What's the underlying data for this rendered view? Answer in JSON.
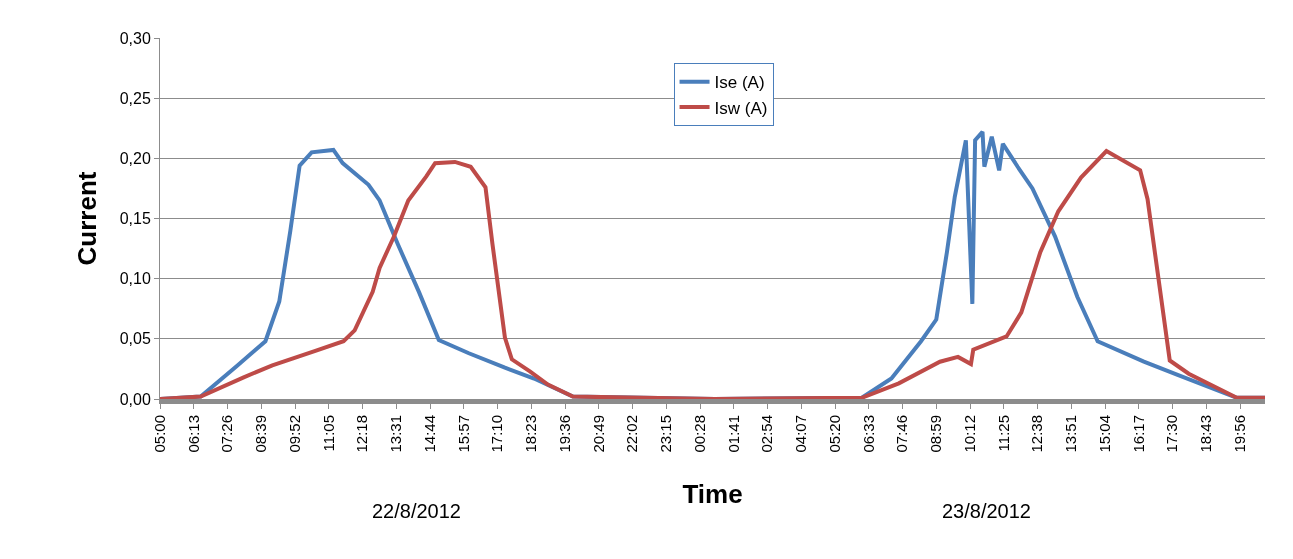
{
  "chart_data": {
    "type": "line",
    "xlabel": "Time",
    "ylabel": "Current",
    "annotations": [
      "22/8/2012",
      "23/8/2012"
    ],
    "xlim": [
      "2012-08-22T05:00",
      "2012-08-23T20:50"
    ],
    "xticks": [
      {
        "value": "2012-08-22T05:00",
        "label": "05:00"
      },
      {
        "value": "2012-08-22T06:13",
        "label": "06:13"
      },
      {
        "value": "2012-08-22T07:26",
        "label": "07:26"
      },
      {
        "value": "2012-08-22T08:39",
        "label": "08:39"
      },
      {
        "value": "2012-08-22T09:52",
        "label": "09:52"
      },
      {
        "value": "2012-08-22T11:05",
        "label": "11:05"
      },
      {
        "value": "2012-08-22T12:18",
        "label": "12:18"
      },
      {
        "value": "2012-08-22T13:31",
        "label": "13:31"
      },
      {
        "value": "2012-08-22T14:44",
        "label": "14:44"
      },
      {
        "value": "2012-08-22T15:57",
        "label": "15:57"
      },
      {
        "value": "2012-08-22T17:10",
        "label": "17:10"
      },
      {
        "value": "2012-08-22T18:23",
        "label": "18:23"
      },
      {
        "value": "2012-08-22T19:36",
        "label": "19:36"
      },
      {
        "value": "2012-08-22T20:49",
        "label": "20:49"
      },
      {
        "value": "2012-08-22T22:02",
        "label": "22:02"
      },
      {
        "value": "2012-08-22T23:15",
        "label": "23:15"
      },
      {
        "value": "2012-08-23T00:28",
        "label": "00:28"
      },
      {
        "value": "2012-08-23T01:41",
        "label": "01:41"
      },
      {
        "value": "2012-08-23T02:54",
        "label": "02:54"
      },
      {
        "value": "2012-08-23T04:07",
        "label": "04:07"
      },
      {
        "value": "2012-08-23T05:20",
        "label": "05:20"
      },
      {
        "value": "2012-08-23T06:33",
        "label": "06:33"
      },
      {
        "value": "2012-08-23T07:46",
        "label": "07:46"
      },
      {
        "value": "2012-08-23T08:59",
        "label": "08:59"
      },
      {
        "value": "2012-08-23T10:12",
        "label": "10:12"
      },
      {
        "value": "2012-08-23T11:25",
        "label": "11:25"
      },
      {
        "value": "2012-08-23T12:38",
        "label": "12:38"
      },
      {
        "value": "2012-08-23T13:51",
        "label": "13:51"
      },
      {
        "value": "2012-08-23T15:04",
        "label": "15:04"
      },
      {
        "value": "2012-08-23T16:17",
        "label": "16:17"
      },
      {
        "value": "2012-08-23T17:30",
        "label": "17:30"
      },
      {
        "value": "2012-08-23T18:43",
        "label": "18:43"
      },
      {
        "value": "2012-08-23T19:56",
        "label": "19:56"
      }
    ],
    "ylim": [
      0,
      0.3
    ],
    "yticks": [
      {
        "value": 0,
        "label": "0,00"
      },
      {
        "value": 0.05,
        "label": "0,05"
      },
      {
        "value": 0.1,
        "label": "0,10"
      },
      {
        "value": 0.15,
        "label": "0,15"
      },
      {
        "value": 0.2,
        "label": "0,20"
      },
      {
        "value": 0.25,
        "label": "0,25"
      },
      {
        "value": 0.3,
        "label": "0,30"
      }
    ],
    "grid": "y",
    "legend": "top",
    "marker": "none",
    "line_style": "solid",
    "series": [
      {
        "name": "Ise (A)",
        "color": "#4a7ebb",
        "x": [
          "2012-08-22T05:00",
          "2012-08-22T06:28",
          "2012-08-22T07:45",
          "2012-08-22T08:48",
          "2012-08-22T09:18",
          "2012-08-22T09:42",
          "2012-08-22T10:02",
          "2012-08-22T10:28",
          "2012-08-22T11:15",
          "2012-08-22T11:35",
          "2012-08-22T12:31",
          "2012-08-22T12:55",
          "2012-08-22T13:34",
          "2012-08-22T14:20",
          "2012-08-22T15:03",
          "2012-08-22T16:08",
          "2012-08-22T17:26",
          "2012-08-22T18:29",
          "2012-08-22T19:53",
          "2012-08-23T01:00",
          "2012-08-23T06:18",
          "2012-08-23T07:22",
          "2012-08-23T08:26",
          "2012-08-23T08:59",
          "2012-08-23T09:22",
          "2012-08-23T09:39",
          "2012-08-23T10:03",
          "2012-08-23T10:10",
          "2012-08-23T10:17",
          "2012-08-23T10:23",
          "2012-08-23T10:39",
          "2012-08-23T10:43",
          "2012-08-23T10:59",
          "2012-08-23T11:15",
          "2012-08-23T11:23",
          "2012-08-23T11:55",
          "2012-08-23T12:27",
          "2012-08-23T13:16",
          "2012-08-23T14:04",
          "2012-08-23T14:48",
          "2012-08-23T16:28",
          "2012-08-23T17:41",
          "2012-08-23T19:49",
          "2012-08-23T20:50"
        ],
        "values": [
          0,
          0.002,
          0.027,
          0.048,
          0.081,
          0.14,
          0.194,
          0.205,
          0.207,
          0.196,
          0.178,
          0.165,
          0.129,
          0.089,
          0.049,
          0.038,
          0.026,
          0.017,
          0.002,
          0,
          0.001,
          0.017,
          0.048,
          0.066,
          0.122,
          0.168,
          0.215,
          0.147,
          0.079,
          0.215,
          0.222,
          0.193,
          0.218,
          0.19,
          0.212,
          0.193,
          0.175,
          0.135,
          0.085,
          0.048,
          0.031,
          0.02,
          0.001,
          0.001
        ]
      },
      {
        "name": "Isw (A)",
        "color": "#be4b48",
        "x": [
          "2012-08-22T05:00",
          "2012-08-22T06:28",
          "2012-08-22T08:01",
          "2012-08-22T09:03",
          "2012-08-22T10:36",
          "2012-08-22T11:37",
          "2012-08-22T12:01",
          "2012-08-22T12:40",
          "2012-08-22T12:55",
          "2012-08-22T13:26",
          "2012-08-22T13:57",
          "2012-08-22T14:36",
          "2012-08-22T14:55",
          "2012-08-22T15:38",
          "2012-08-22T16:12",
          "2012-08-22T16:44",
          "2012-08-22T16:59",
          "2012-08-22T17:26",
          "2012-08-22T17:41",
          "2012-08-22T18:20",
          "2012-08-22T18:59",
          "2012-08-22T19:53",
          "2012-08-23T01:00",
          "2012-08-23T06:18",
          "2012-08-23T07:38",
          "2012-08-23T09:07",
          "2012-08-23T09:46",
          "2012-08-23T10:14",
          "2012-08-23T10:19",
          "2012-08-23T11:31",
          "2012-08-23T12:03",
          "2012-08-23T12:44",
          "2012-08-23T13:23",
          "2012-08-23T14:12",
          "2012-08-23T15:07",
          "2012-08-23T16:20",
          "2012-08-23T16:36",
          "2012-08-23T17:24",
          "2012-08-23T18:05",
          "2012-08-23T19:49",
          "2012-08-23T20:50"
        ],
        "values": [
          0,
          0.002,
          0.018,
          0.028,
          0.04,
          0.048,
          0.057,
          0.089,
          0.109,
          0.135,
          0.165,
          0.185,
          0.196,
          0.197,
          0.193,
          0.176,
          0.129,
          0.051,
          0.033,
          0.023,
          0.012,
          0.002,
          0,
          0.001,
          0.013,
          0.031,
          0.035,
          0.029,
          0.041,
          0.052,
          0.072,
          0.122,
          0.156,
          0.184,
          0.206,
          0.19,
          0.166,
          0.032,
          0.021,
          0.001,
          0.001
        ]
      }
    ]
  }
}
